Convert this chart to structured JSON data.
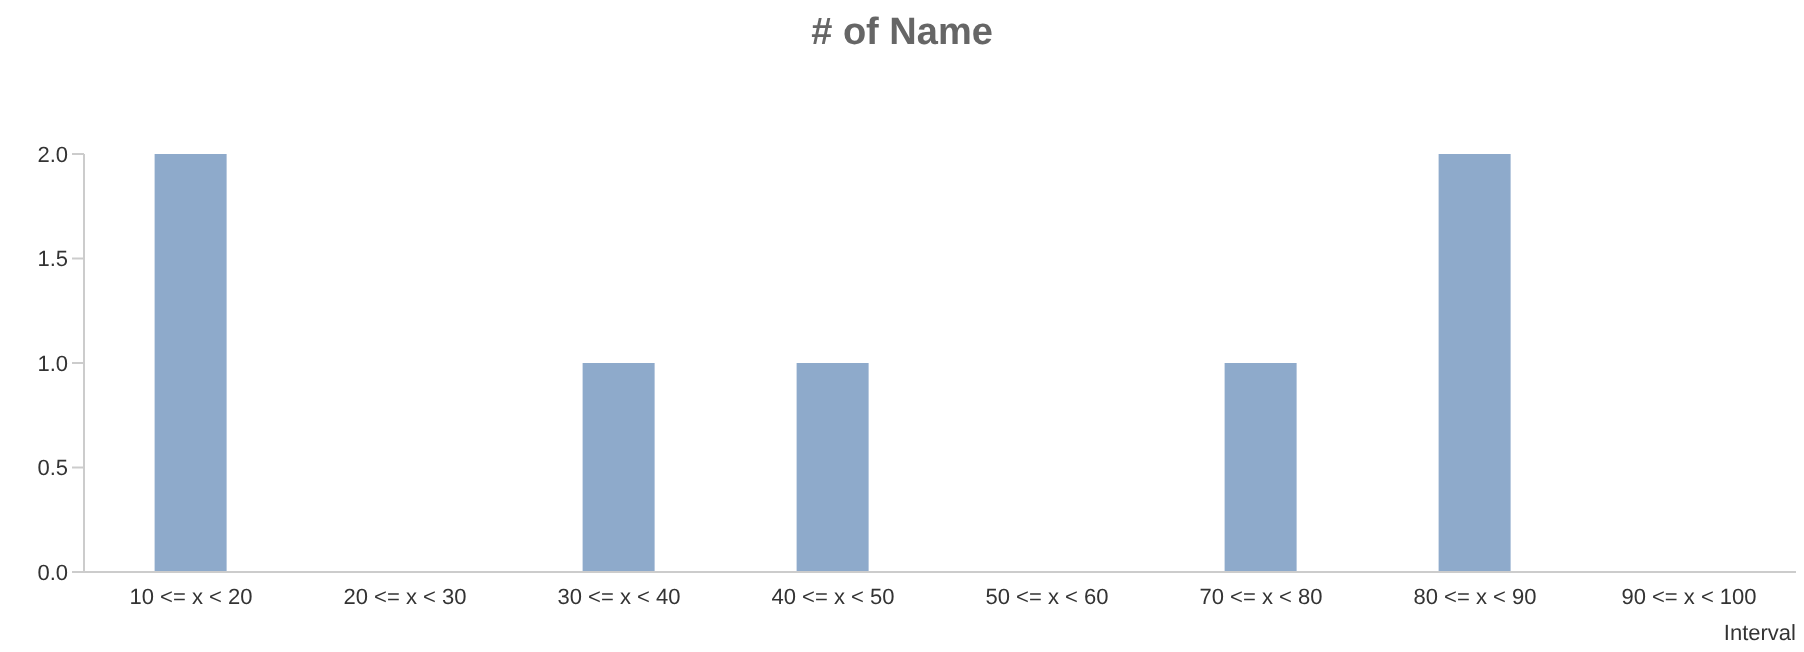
{
  "chart_data": {
    "type": "bar",
    "title": "# of Name",
    "xlabel": "Interval",
    "categories": [
      "10 <= x < 20",
      "20 <= x < 30",
      "30 <= x < 40",
      "40 <= x < 50",
      "50 <= x < 60",
      "70 <= x < 80",
      "80 <= x < 90",
      "90 <= x < 100"
    ],
    "values": [
      2,
      0,
      1,
      1,
      0,
      1,
      2,
      0
    ],
    "color": "#8eaacb",
    "ylim": [
      0,
      2
    ],
    "yticks": [
      {
        "value": 0,
        "label": "0.0"
      },
      {
        "value": 0.5,
        "label": "0.5"
      },
      {
        "value": 1,
        "label": "1.0"
      },
      {
        "value": 1.5,
        "label": "1.5"
      },
      {
        "value": 2,
        "label": "2.0"
      }
    ],
    "grid": false,
    "legend": false
  }
}
